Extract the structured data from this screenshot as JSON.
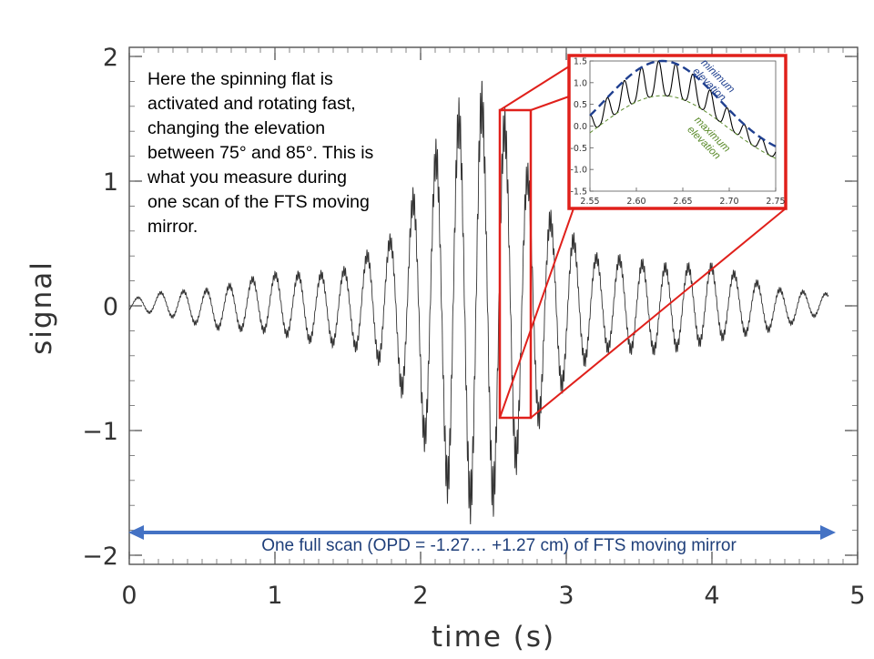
{
  "chart_data": {
    "main": {
      "type": "line",
      "xlabel": "time (s)",
      "ylabel": "signal",
      "xlim": [
        0,
        5
      ],
      "ylim": [
        -2,
        2
      ],
      "xticks": [
        "0",
        "1",
        "2",
        "3",
        "4",
        "5"
      ],
      "yticks": [
        "2",
        "1",
        "0",
        "−1",
        "−2"
      ],
      "grid": false,
      "series": [
        {
          "envelope_x": [
            0.0,
            0.5,
            1.0,
            1.5,
            1.8,
            2.0,
            2.2,
            2.4,
            2.55,
            2.7,
            2.9,
            3.2,
            3.5,
            4.0,
            4.5,
            4.8
          ],
          "envelope_y": [
            0.05,
            0.15,
            0.25,
            0.32,
            0.55,
            1.05,
            1.55,
            1.75,
            1.6,
            1.2,
            0.75,
            0.4,
            0.38,
            0.32,
            0.15,
            0.08
          ],
          "peaks": [
            {
              "x": 2.42,
              "y": 1.82
            },
            {
              "x": 2.27,
              "y": -1.72
            },
            {
              "x": 2.52,
              "y": -1.78
            },
            {
              "x": 2.6,
              "y": 1.55
            },
            {
              "x": 2.06,
              "y": 1.5
            }
          ]
        }
      ]
    },
    "inset": {
      "type": "line",
      "xlim": [
        2.55,
        2.75
      ],
      "ylim": [
        -1.5,
        1.5
      ],
      "xticks": [
        "2.55",
        "2.60",
        "2.65",
        "2.70",
        "2.75"
      ],
      "yticks": [
        "1.5",
        "1.0",
        "0.5",
        "0.0",
        "-0.5",
        "-1.0",
        "-1.5"
      ],
      "min_elevation_peak": {
        "x": 2.628,
        "y": 1.5
      },
      "min_elevation_end": {
        "x": 2.75,
        "y": -0.55
      },
      "max_elevation_peak": {
        "x": 2.628,
        "y": 0.7
      },
      "max_elevation_end": {
        "x": 2.75,
        "y": -1.0
      },
      "signal_start": {
        "x": 2.55,
        "y": -0.8
      },
      "signal_end": {
        "x": 2.75,
        "y": -0.6
      }
    }
  },
  "annotation": {
    "lines": [
      "Here the spinning flat is",
      "activated and rotating fast,",
      "changing the elevation",
      "between 75° and 85°. This is",
      "what you measure during",
      "one scan of the FTS moving",
      "mirror."
    ]
  },
  "scan_label": "One full scan (OPD = -1.27… +1.27 cm) of FTS moving mirror",
  "inset_labels": {
    "min": [
      "minimum",
      "elevation"
    ],
    "max": [
      "maximum",
      "elevation"
    ]
  },
  "colors": {
    "signal": "#333333",
    "highlight": "#e0201b",
    "arrow": "#4472c4",
    "min_elevation": "#1f3f8f",
    "max_elevation": "#5a8a2a"
  }
}
